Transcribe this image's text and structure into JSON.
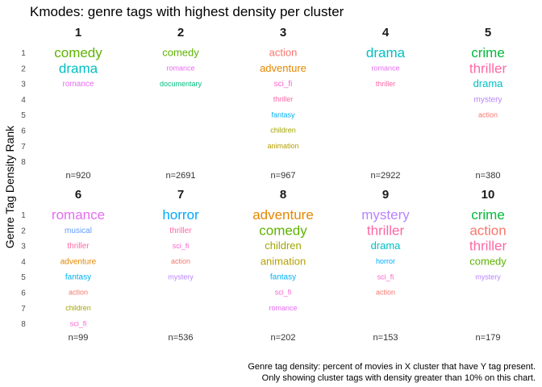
{
  "chart_data": {
    "type": "text-grid",
    "title": "Kmodes: genre tags with highest density per cluster",
    "ylabel": "Genre Tag Density Rank",
    "y_ticks": [
      "1",
      "2",
      "3",
      "4",
      "5",
      "6",
      "7",
      "8"
    ],
    "caption": [
      "Genre tag density: percent of movies in X cluster that have Y tag present.",
      "Only showing cluster tags with density greater than 10% on this chart."
    ],
    "tag_colors": {
      "action": "#F8766D",
      "adventure": "#E58700",
      "animation": "#B79F00",
      "children": "#A3A500",
      "comedy": "#5EB300",
      "crime": "#00BA38",
      "documentary": "#00BF7D",
      "drama": "#00BFC4",
      "fantasy": "#00B0F6",
      "horror": "#00A9FF",
      "musical": "#619CFF",
      "mystery": "#B983FF",
      "romance": "#E76BF3",
      "sci_fi": "#FD61D1",
      "thriller": "#FF67A4"
    },
    "clusters": [
      {
        "label": "1",
        "n": "n=920",
        "tags": [
          {
            "rank": 1,
            "tag": "comedy",
            "size": 3
          },
          {
            "rank": 2,
            "tag": "drama",
            "size": 3
          },
          {
            "rank": 3,
            "tag": "romance",
            "size": 1
          }
        ]
      },
      {
        "label": "2",
        "n": "n=2691",
        "tags": [
          {
            "rank": 1,
            "tag": "comedy",
            "size": 2
          },
          {
            "rank": 2,
            "tag": "romance",
            "size": 0
          },
          {
            "rank": 3,
            "tag": "documentary",
            "size": 0
          }
        ]
      },
      {
        "label": "3",
        "n": "n=967",
        "tags": [
          {
            "rank": 1,
            "tag": "action",
            "size": 2
          },
          {
            "rank": 2,
            "tag": "adventure",
            "size": 2
          },
          {
            "rank": 3,
            "tag": "sci_fi",
            "size": 1
          },
          {
            "rank": 4,
            "tag": "thriller",
            "size": 0
          },
          {
            "rank": 5,
            "tag": "fantasy",
            "size": 0
          },
          {
            "rank": 6,
            "tag": "children",
            "size": 0
          },
          {
            "rank": 7,
            "tag": "animation",
            "size": 0
          }
        ]
      },
      {
        "label": "4",
        "n": "n=2922",
        "tags": [
          {
            "rank": 1,
            "tag": "drama",
            "size": 3
          },
          {
            "rank": 2,
            "tag": "romance",
            "size": 0
          },
          {
            "rank": 3,
            "tag": "thriller",
            "size": 0
          }
        ]
      },
      {
        "label": "5",
        "n": "n=380",
        "tags": [
          {
            "rank": 1,
            "tag": "crime",
            "size": 3
          },
          {
            "rank": 2,
            "tag": "thriller",
            "size": 3
          },
          {
            "rank": 3,
            "tag": "drama",
            "size": 2
          },
          {
            "rank": 4,
            "tag": "mystery",
            "size": 1
          },
          {
            "rank": 5,
            "tag": "action",
            "size": 0
          }
        ]
      },
      {
        "label": "6",
        "n": "n=99",
        "tags": [
          {
            "rank": 1,
            "tag": "romance",
            "size": 3
          },
          {
            "rank": 2,
            "tag": "musical",
            "size": 1
          },
          {
            "rank": 3,
            "tag": "thriller",
            "size": 1
          },
          {
            "rank": 4,
            "tag": "adventure",
            "size": 1
          },
          {
            "rank": 5,
            "tag": "fantasy",
            "size": 1
          },
          {
            "rank": 6,
            "tag": "action",
            "size": 0
          },
          {
            "rank": 7,
            "tag": "children",
            "size": 0
          },
          {
            "rank": 8,
            "tag": "sci_fi",
            "size": 0
          }
        ]
      },
      {
        "label": "7",
        "n": "n=536",
        "tags": [
          {
            "rank": 1,
            "tag": "horror",
            "size": 3
          },
          {
            "rank": 2,
            "tag": "thriller",
            "size": 1
          },
          {
            "rank": 3,
            "tag": "sci_fi",
            "size": 0
          },
          {
            "rank": 4,
            "tag": "action",
            "size": 0
          },
          {
            "rank": 5,
            "tag": "mystery",
            "size": 0
          }
        ]
      },
      {
        "label": "8",
        "n": "n=202",
        "tags": [
          {
            "rank": 1,
            "tag": "adventure",
            "size": 3
          },
          {
            "rank": 2,
            "tag": "comedy",
            "size": 3
          },
          {
            "rank": 3,
            "tag": "children",
            "size": 2
          },
          {
            "rank": 4,
            "tag": "animation",
            "size": 2
          },
          {
            "rank": 5,
            "tag": "fantasy",
            "size": 1
          },
          {
            "rank": 6,
            "tag": "sci_fi",
            "size": 0
          },
          {
            "rank": 7,
            "tag": "romance",
            "size": 0
          }
        ]
      },
      {
        "label": "9",
        "n": "n=153",
        "tags": [
          {
            "rank": 1,
            "tag": "mystery",
            "size": 3
          },
          {
            "rank": 2,
            "tag": "thriller",
            "size": 3
          },
          {
            "rank": 3,
            "tag": "drama",
            "size": 2
          },
          {
            "rank": 4,
            "tag": "horror",
            "size": 0
          },
          {
            "rank": 5,
            "tag": "sci_fi",
            "size": 0
          },
          {
            "rank": 6,
            "tag": "action",
            "size": 0
          }
        ]
      },
      {
        "label": "10",
        "n": "n=179",
        "tags": [
          {
            "rank": 1,
            "tag": "crime",
            "size": 3
          },
          {
            "rank": 2,
            "tag": "action",
            "size": 3
          },
          {
            "rank": 3,
            "tag": "thriller",
            "size": 3
          },
          {
            "rank": 4,
            "tag": "comedy",
            "size": 2
          },
          {
            "rank": 5,
            "tag": "mystery",
            "size": 0
          }
        ]
      }
    ]
  }
}
